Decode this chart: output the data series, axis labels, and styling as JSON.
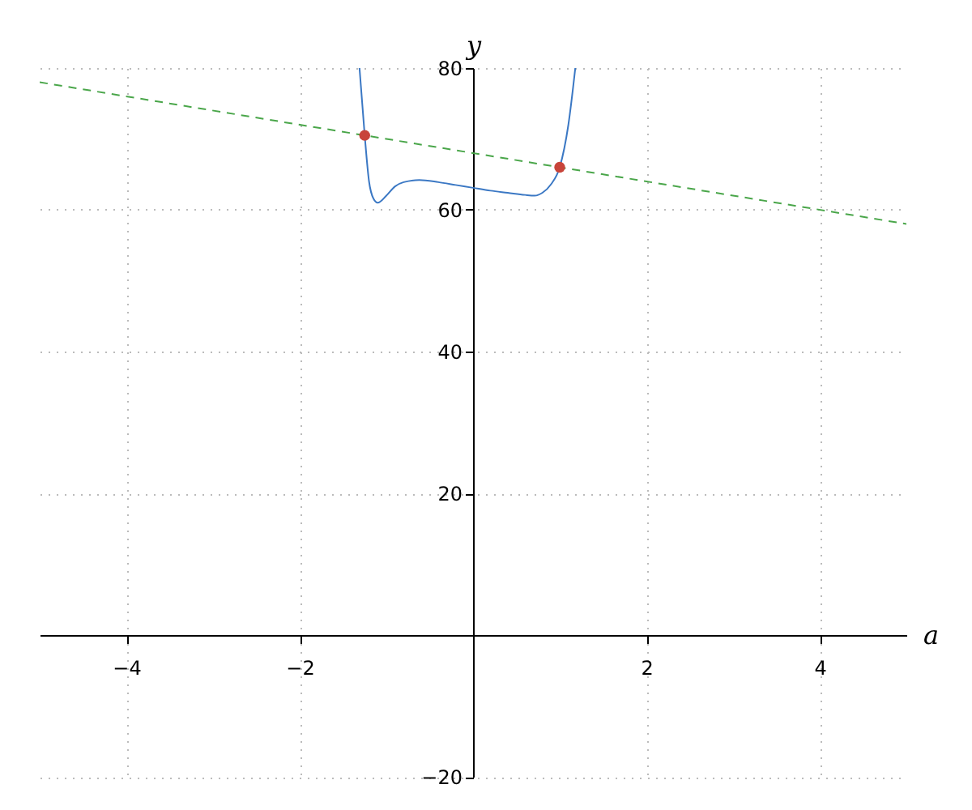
{
  "chart_data": {
    "type": "line",
    "xlabel": "a",
    "ylabel": "y",
    "xlim": [
      -5,
      5
    ],
    "ylim": [
      -20,
      80
    ],
    "xticks": [
      -4,
      -2,
      2,
      4
    ],
    "yticks": [
      -20,
      20,
      40,
      60,
      80
    ],
    "grid": true,
    "legend": false,
    "series": [
      {
        "type": "line",
        "color": "#3b78c4",
        "line_style": "solid",
        "marker": "none",
        "x": [
          -1.31,
          -1.25,
          -1.2,
          -1.15,
          -1.1,
          -1.0,
          -0.9,
          -0.8,
          -0.62,
          -0.4,
          -0.2,
          0,
          0.2,
          0.4,
          0.6,
          0.71,
          0.8,
          0.9,
          1.0,
          1.1,
          1.18
        ],
        "values": [
          80,
          70.5,
          64,
          61.6,
          61,
          62,
          63.3,
          63.9,
          64.2,
          63.9,
          63.5,
          63.1,
          62.7,
          62.4,
          62.1,
          62,
          62.4,
          63.6,
          66,
          72,
          80
        ]
      },
      {
        "type": "line",
        "color": "#4aa64a",
        "line_style": "dashed",
        "marker": "none",
        "x": [
          -5,
          5
        ],
        "values": [
          78,
          58
        ]
      },
      {
        "type": "scatter",
        "color": "#c8443a",
        "marker": "circle",
        "x": [
          -1.25,
          1
        ],
        "values": [
          70.5,
          66
        ]
      }
    ]
  }
}
